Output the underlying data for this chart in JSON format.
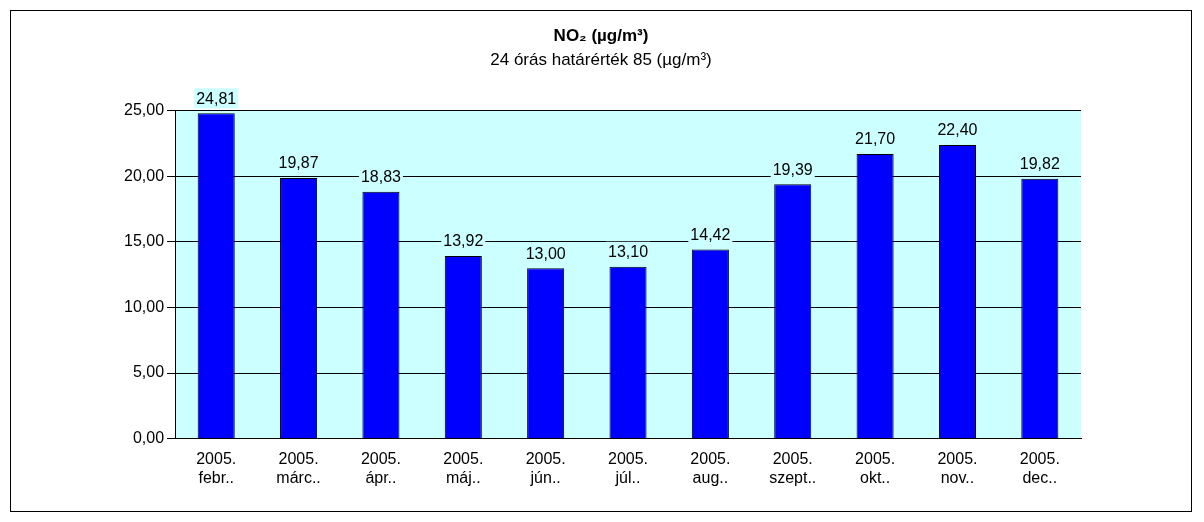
{
  "chart_data": {
    "type": "bar",
    "title": "NO₂ (µg/m³)",
    "subtitle": "24 órás határérték 85 (µg/m³)",
    "categories": [
      "2005. febr..",
      "2005. márc..",
      "2005. ápr..",
      "2005. máj..",
      "2005. jún..",
      "2005. júl..",
      "2005. aug..",
      "2005. szept..",
      "2005. okt..",
      "2005. nov..",
      "2005. dec.."
    ],
    "values": [
      24.81,
      19.87,
      18.83,
      13.92,
      13.0,
      13.1,
      14.42,
      19.39,
      21.7,
      22.4,
      19.82
    ],
    "value_labels": [
      "24,81",
      "19,87",
      "18,83",
      "13,92",
      "13,00",
      "13,10",
      "14,42",
      "19,39",
      "21,70",
      "22,40",
      "19,82"
    ],
    "color": "#0000ff",
    "ylim": [
      0,
      25
    ],
    "yticks": [
      {
        "value": 0,
        "label": "0,00"
      },
      {
        "value": 5,
        "label": "5,00"
      },
      {
        "value": 10,
        "label": "10,00"
      },
      {
        "value": 15,
        "label": "15,00"
      },
      {
        "value": 20,
        "label": "20,00"
      },
      {
        "value": 25,
        "label": "25,00"
      }
    ],
    "grid": "y",
    "legend": false
  }
}
